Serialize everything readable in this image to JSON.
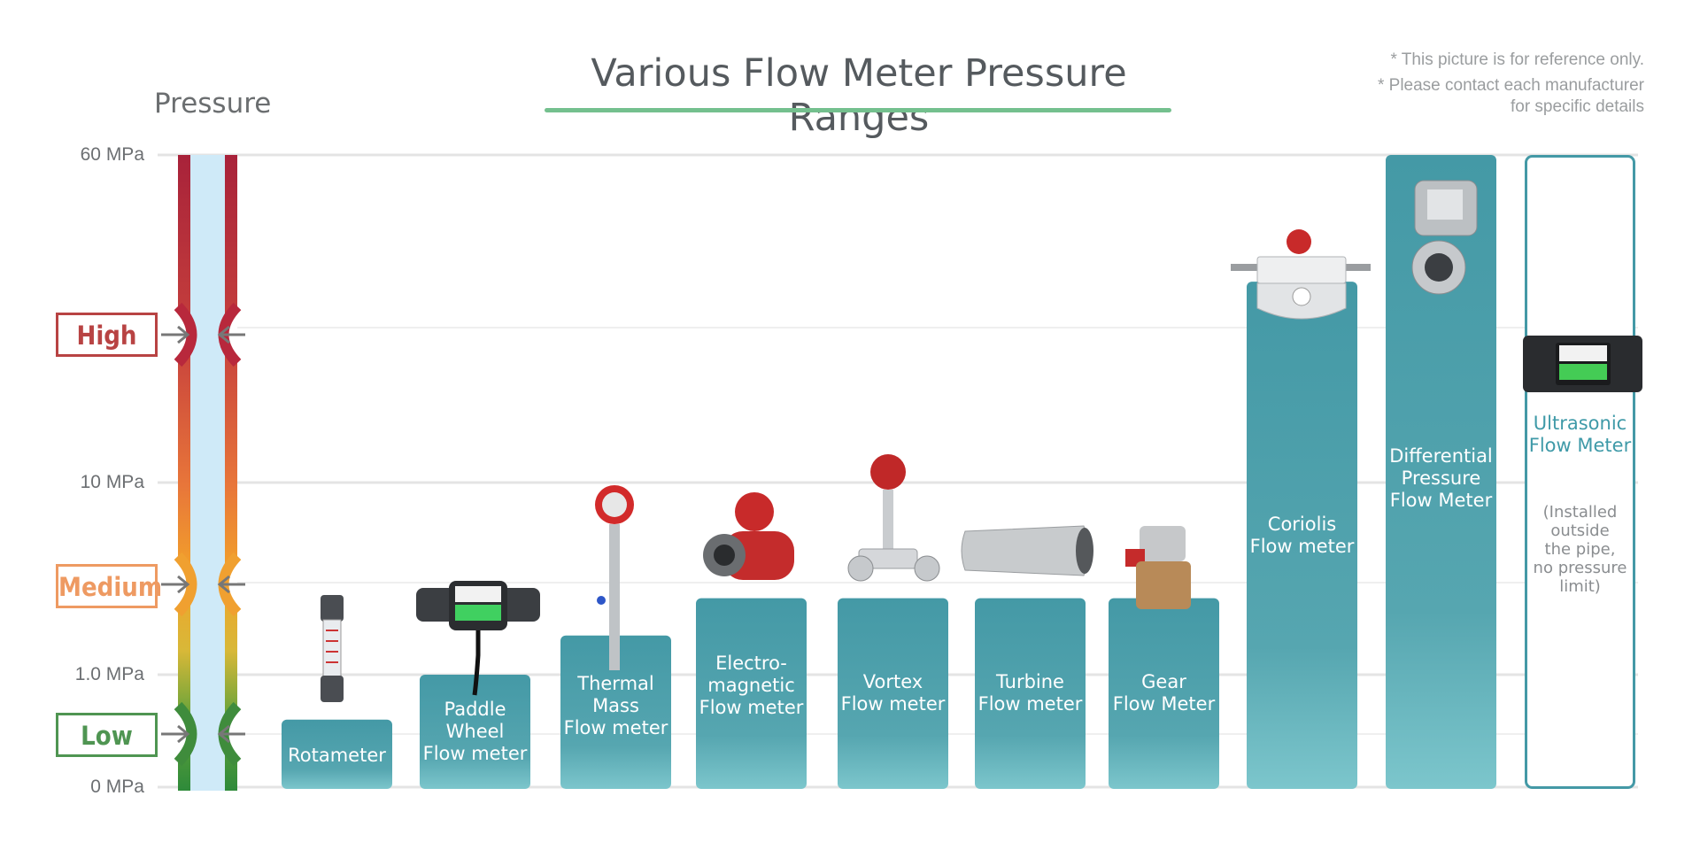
{
  "title": "Various Flow Meter Pressure Ranges",
  "pressure_label": "Pressure",
  "notes": [
    "*  This picture is for reference only.",
    "*  Please contact each manufacturer",
    "for specific details"
  ],
  "levels": [
    {
      "label": "High",
      "color": "#b84343"
    },
    {
      "label": "Medium",
      "color": "#ee9a62"
    },
    {
      "label": "Low",
      "color": "#4f9552"
    }
  ],
  "colors": {
    "bar_top": "#4499a6",
    "bar_bottom": "#7cc6cc",
    "ultrasonic_text": "#3f9aa8",
    "grid": "#e4e4e4",
    "pipe_inner": "#cfeaf8"
  },
  "chart_data": {
    "type": "bar",
    "title": "Various Flow Meter Pressure Ranges",
    "ylabel": "Pressure",
    "xlabel": "",
    "y_scale": "piecewise-log",
    "y_ticks": [
      {
        "value": 0,
        "label": "0 MPa"
      },
      {
        "value": 1.0,
        "label": "1.0 MPa"
      },
      {
        "value": 10,
        "label": "10 MPa"
      },
      {
        "value": 60,
        "label": "60 MPa"
      }
    ],
    "ylim": [
      0,
      60
    ],
    "grid": true,
    "categories": [
      "Rotameter",
      "Paddle\nWheel\nFlow meter",
      "Thermal\nMass\nFlow meter",
      "Electro-\nmagnetic\nFlow meter",
      "Vortex\nFlow meter",
      "Turbine\nFlow meter",
      "Gear\nFlow Meter",
      "Coriolis\nFlow meter",
      "Differential\nPressure\nFlow Meter",
      "Ultrasonic\nFlow Meter"
    ],
    "values": [
      0.6,
      1.0,
      1.6,
      2.5,
      2.5,
      2.5,
      2.5,
      30,
      60,
      60
    ],
    "annotations": [
      {
        "category": "Ultrasonic\nFlow Meter",
        "text": "(Installed\noutside\nthe pipe,\nno pressure\nlimit)"
      }
    ]
  }
}
